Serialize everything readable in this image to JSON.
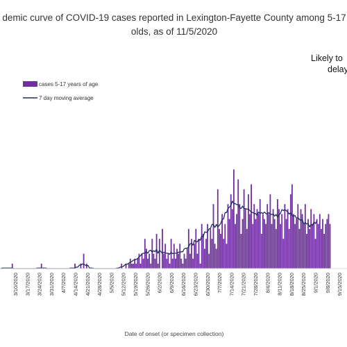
{
  "chart_data": {
    "type": "bar",
    "title_line1": "demic curve of COVID-19 cases reported in Lexington-Fayette County among 5-17",
    "title_line2": "olds, as of 11/5/2020",
    "annotation_line1": "Likely to",
    "annotation_line2": "delay",
    "xlabel": "Date of onset (or specimen collection)",
    "ylabel": "",
    "ylim": [
      0,
      28
    ],
    "grid": false,
    "legend_position": "top-left",
    "colors": {
      "bar": "#7030a0",
      "line": "#1f2f5c"
    },
    "tick_labels": [
      "3/10/2020",
      "3/17/2020",
      "3/24/2020",
      "3/31/2020",
      "4/7/2020",
      "4/14/2020",
      "4/21/2020",
      "4/28/2020",
      "5/5/2020",
      "5/12/2020",
      "5/19/2020",
      "5/26/2020",
      "6/2/2020",
      "6/9/2020",
      "6/16/2020",
      "6/23/2020",
      "6/30/2020",
      "7/7/2020",
      "7/14/2020",
      "7/21/2020",
      "7/28/2020",
      "8/4/2020",
      "8/11/2020",
      "8/18/2020",
      "8/25/2020",
      "9/1/2020",
      "9/8/2020",
      "9/15/2020",
      "9/22/2020",
      "9/29/2020"
    ],
    "series": [
      {
        "name": "cases 5-17 years of age",
        "type": "bar",
        "values": [
          0,
          0,
          0,
          0,
          0,
          0,
          0,
          0,
          1,
          0,
          0,
          0,
          0,
          0,
          0,
          0,
          0,
          0,
          0,
          0,
          0,
          0,
          0,
          0,
          0,
          0,
          0,
          0,
          1,
          0,
          0,
          0,
          0,
          0,
          0,
          0,
          0,
          0,
          0,
          0,
          0,
          0,
          0,
          0,
          0,
          0,
          0,
          0,
          0,
          0,
          0,
          1,
          0,
          0,
          0,
          1,
          0,
          3,
          0,
          1,
          0,
          0,
          0,
          0,
          0,
          0,
          0,
          0,
          0,
          0,
          0,
          0,
          0,
          0,
          0,
          0,
          0,
          0,
          0,
          0,
          0,
          0,
          0,
          1,
          0,
          0,
          1,
          0,
          1,
          2,
          1,
          1,
          2,
          1,
          2,
          3,
          1,
          3,
          2,
          6,
          4,
          2,
          3,
          1,
          6,
          3,
          2,
          7,
          1,
          6,
          0,
          8,
          3,
          5,
          2,
          3,
          1,
          6,
          2,
          5,
          2,
          4,
          3,
          5,
          2,
          1,
          3,
          2,
          4,
          8,
          3,
          6,
          2,
          5,
          8,
          3,
          6,
          1,
          9,
          7,
          4,
          6,
          9,
          3,
          8,
          6,
          13,
          5,
          4,
          16,
          8,
          7,
          11,
          6,
          9,
          5,
          13,
          10,
          15,
          12,
          20,
          9,
          11,
          18,
          13,
          7,
          10,
          16,
          12,
          8,
          15,
          11,
          17,
          9,
          13,
          10,
          12,
          11,
          14,
          7,
          11,
          10,
          9,
          13,
          11,
          15,
          9,
          12,
          10,
          8,
          14,
          12,
          9,
          11,
          6,
          13,
          10,
          12,
          8,
          15,
          17,
          11,
          9,
          10,
          13,
          8,
          12,
          11,
          9,
          13,
          7,
          10,
          8,
          12,
          9,
          11,
          6,
          10,
          9,
          11,
          8,
          10,
          7,
          9,
          10,
          11,
          9
        ]
      },
      {
        "name": "7 day moving average",
        "type": "line",
        "values": [
          0.0,
          0.1,
          0.1,
          0.1,
          0.1,
          0.1,
          0.1,
          0.1,
          0.1,
          0.0,
          0.0,
          0.0,
          0.0,
          0.0,
          0.0,
          0.0,
          0.0,
          0.0,
          0.0,
          0.0,
          0.0,
          0.0,
          0.0,
          0.0,
          0.0,
          0.1,
          0.1,
          0.1,
          0.1,
          0.1,
          0.1,
          0.1,
          0.0,
          0.0,
          0.0,
          0.0,
          0.0,
          0.0,
          0.0,
          0.0,
          0.0,
          0.0,
          0.0,
          0.0,
          0.0,
          0.0,
          0.0,
          0.0,
          0.1,
          0.1,
          0.1,
          0.1,
          0.3,
          0.3,
          0.7,
          0.7,
          0.9,
          0.9,
          0.7,
          0.6,
          0.6,
          0.1,
          0.1,
          0.1,
          0.0,
          0.0,
          0.0,
          0.0,
          0.0,
          0.0,
          0.0,
          0.0,
          0.0,
          0.0,
          0.0,
          0.0,
          0.0,
          0.0,
          0.0,
          0.0,
          0.1,
          0.1,
          0.3,
          0.3,
          0.4,
          0.7,
          0.9,
          0.9,
          1.1,
          1.3,
          1.4,
          1.7,
          1.7,
          1.9,
          2.0,
          2.4,
          2.6,
          3.0,
          3.1,
          3.1,
          3.4,
          3.1,
          3.6,
          3.7,
          3.3,
          3.6,
          3.4,
          3.9,
          3.1,
          3.7,
          3.4,
          3.1,
          3.3,
          3.1,
          3.1,
          3.1,
          2.9,
          3.3,
          3.0,
          3.1,
          3.1,
          3.1,
          3.3,
          3.3,
          3.4,
          3.4,
          4.0,
          4.1,
          4.1,
          4.4,
          5.0,
          5.1,
          4.7,
          5.7,
          5.4,
          5.4,
          5.9,
          5.7,
          6.6,
          6.4,
          7.4,
          7.3,
          7.4,
          8.0,
          8.1,
          8.9,
          8.9,
          8.3,
          8.9,
          8.4,
          8.7,
          9.1,
          9.9,
          10.0,
          11.3,
          11.3,
          12.1,
          12.4,
          12.7,
          13.6,
          13.1,
          13.1,
          12.9,
          12.9,
          12.3,
          12.1,
          12.6,
          12.1,
          12.1,
          12.0,
          12.0,
          11.7,
          11.4,
          11.3,
          11.1,
          11.1,
          10.7,
          11.4,
          11.1,
          11.3,
          11.1,
          11.4,
          11.1,
          11.0,
          11.3,
          11.0,
          10.9,
          11.0,
          10.6,
          10.9,
          10.4,
          10.9,
          11.1,
          11.9,
          11.7,
          11.9,
          11.7,
          11.4,
          11.0,
          11.3,
          10.7,
          10.6,
          10.7,
          10.1,
          10.3,
          9.9,
          9.7,
          9.9,
          9.0,
          9.3,
          9.0,
          9.1,
          8.4,
          8.9,
          8.7,
          9.4,
          9.1,
          9.6
        ]
      }
    ]
  }
}
